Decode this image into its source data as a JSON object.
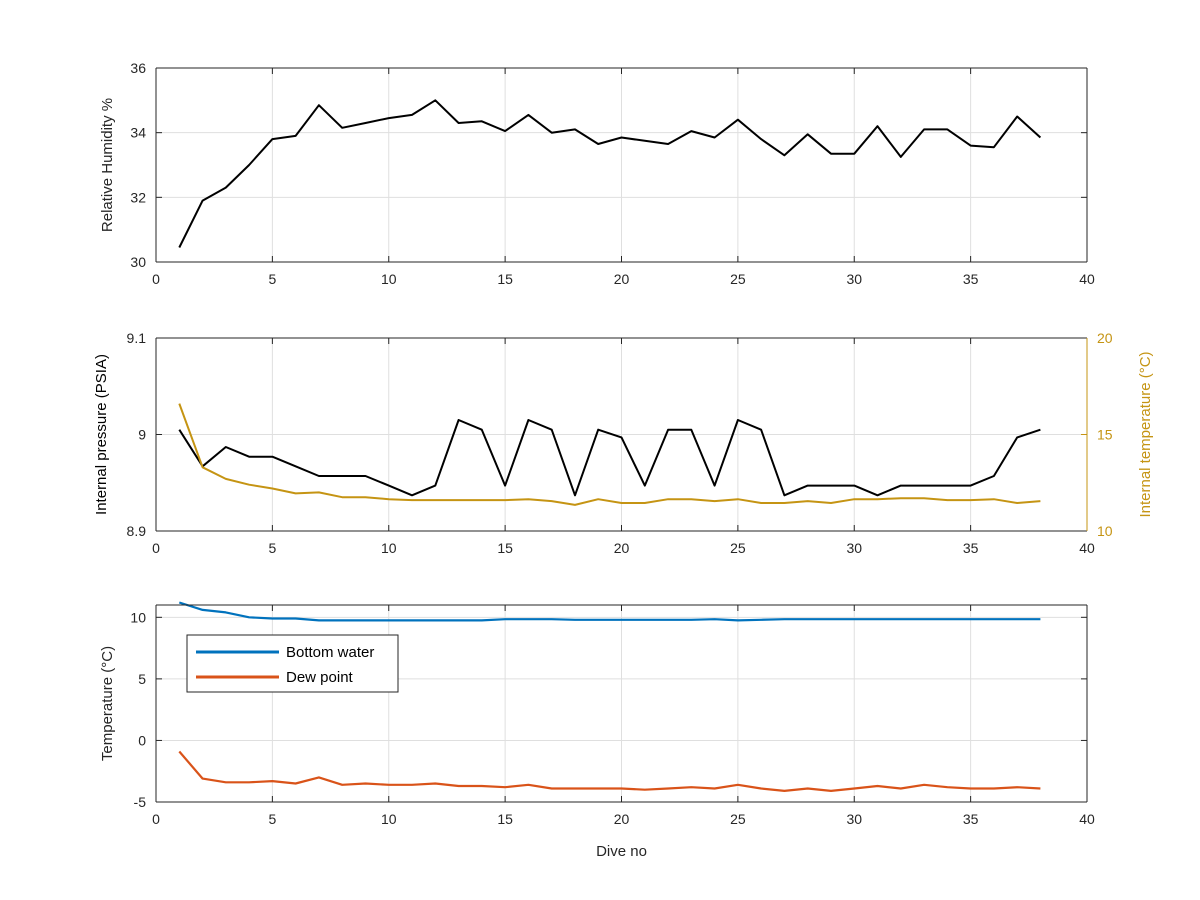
{
  "colors": {
    "axis": "#262626",
    "grid": "#dfdfdf",
    "black_series": "#000000",
    "gold": "#c59413",
    "blue": "#0072bd",
    "orange": "#d95319"
  },
  "chart_data": [
    {
      "type": "line",
      "xlabel": "",
      "ylabel": "Relative Humidity %",
      "xlim": [
        0,
        40
      ],
      "ylim": [
        30,
        36
      ],
      "x_ticks": [
        "0",
        "5",
        "10",
        "15",
        "20",
        "25",
        "30",
        "35",
        "40"
      ],
      "y_ticks": [
        "30",
        "32",
        "34",
        "36"
      ],
      "grid": true,
      "x": [
        1,
        2,
        3,
        4,
        5,
        6,
        7,
        8,
        9,
        10,
        11,
        12,
        13,
        14,
        15,
        16,
        17,
        18,
        19,
        20,
        21,
        22,
        23,
        24,
        25,
        26,
        27,
        28,
        29,
        30,
        31,
        32,
        33,
        34,
        35,
        36,
        37,
        38
      ],
      "series": [
        {
          "color": "#000000",
          "values": [
            30.45,
            31.9,
            32.3,
            33.0,
            33.8,
            33.9,
            34.85,
            34.15,
            34.3,
            34.45,
            34.55,
            35.0,
            34.3,
            34.35,
            34.05,
            34.55,
            34.0,
            34.1,
            33.65,
            33.85,
            33.75,
            33.65,
            34.05,
            33.85,
            34.4,
            33.8,
            33.3,
            33.95,
            33.35,
            33.35,
            34.2,
            33.25,
            34.1,
            34.1,
            33.6,
            33.55,
            34.5,
            33.85
          ]
        }
      ]
    },
    {
      "type": "line",
      "xlabel": "",
      "ylabel": "Internal pressure (PSIA)",
      "y2label": "Internal temperature (°C)",
      "xlim": [
        0,
        40
      ],
      "ylim": [
        8.9,
        9.1
      ],
      "y2lim": [
        10,
        20
      ],
      "x_ticks": [
        "0",
        "5",
        "10",
        "15",
        "20",
        "25",
        "30",
        "35",
        "40"
      ],
      "y_ticks": [
        "8.9",
        "9",
        "9.1"
      ],
      "y2_ticks": [
        "10",
        "15",
        "20"
      ],
      "grid": true,
      "x": [
        1,
        2,
        3,
        4,
        5,
        6,
        7,
        8,
        9,
        10,
        11,
        12,
        13,
        14,
        15,
        16,
        17,
        18,
        19,
        20,
        21,
        22,
        23,
        24,
        25,
        26,
        27,
        28,
        29,
        30,
        31,
        32,
        33,
        34,
        35,
        36,
        37,
        38
      ],
      "series": [
        {
          "axis": "left",
          "color": "#000000",
          "values": [
            9.005,
            8.967,
            8.987,
            8.977,
            8.977,
            8.967,
            8.957,
            8.957,
            8.957,
            8.947,
            8.937,
            8.947,
            9.015,
            9.005,
            8.947,
            9.015,
            9.005,
            8.937,
            9.005,
            8.997,
            8.947,
            9.005,
            9.005,
            8.947,
            9.015,
            9.005,
            8.937,
            8.947,
            8.947,
            8.947,
            8.937,
            8.947,
            8.947,
            8.947,
            8.947,
            8.957,
            8.997,
            9.005
          ]
        },
        {
          "axis": "right",
          "color": "#c59413",
          "values": [
            16.6,
            13.3,
            12.7,
            12.4,
            12.2,
            11.95,
            12.0,
            11.75,
            11.75,
            11.65,
            11.6,
            11.6,
            11.6,
            11.6,
            11.6,
            11.65,
            11.55,
            11.35,
            11.65,
            11.45,
            11.45,
            11.65,
            11.65,
            11.55,
            11.65,
            11.45,
            11.45,
            11.55,
            11.45,
            11.65,
            11.65,
            11.7,
            11.7,
            11.6,
            11.6,
            11.65,
            11.45,
            11.55
          ]
        }
      ]
    },
    {
      "type": "line",
      "xlabel": "Dive no",
      "ylabel": "Temperature (°C)",
      "xlim": [
        0,
        40
      ],
      "ylim": [
        -5,
        11
      ],
      "x_ticks": [
        "0",
        "5",
        "10",
        "15",
        "20",
        "25",
        "30",
        "35",
        "40"
      ],
      "y_ticks": [
        "-5",
        "0",
        "5",
        "10"
      ],
      "grid": true,
      "legend_position": "top-left",
      "x": [
        1,
        2,
        3,
        4,
        5,
        6,
        7,
        8,
        9,
        10,
        11,
        12,
        13,
        14,
        15,
        16,
        17,
        18,
        19,
        20,
        21,
        22,
        23,
        24,
        25,
        26,
        27,
        28,
        29,
        30,
        31,
        32,
        33,
        34,
        35,
        36,
        37,
        38
      ],
      "series": [
        {
          "name": "Bottom water",
          "color": "#0072bd",
          "values": [
            11.2,
            10.6,
            10.4,
            10.0,
            9.9,
            9.9,
            9.75,
            9.75,
            9.75,
            9.75,
            9.75,
            9.75,
            9.75,
            9.75,
            9.85,
            9.85,
            9.85,
            9.8,
            9.8,
            9.8,
            9.8,
            9.8,
            9.8,
            9.85,
            9.75,
            9.8,
            9.85,
            9.85,
            9.85,
            9.85,
            9.85,
            9.85,
            9.85,
            9.85,
            9.85,
            9.85,
            9.85,
            9.85
          ]
        },
        {
          "name": "Dew point",
          "color": "#d95319",
          "values": [
            -0.9,
            -3.1,
            -3.4,
            -3.4,
            -3.3,
            -3.5,
            -3.0,
            -3.6,
            -3.5,
            -3.6,
            -3.6,
            -3.5,
            -3.7,
            -3.7,
            -3.8,
            -3.6,
            -3.9,
            -3.9,
            -3.9,
            -3.9,
            -4.0,
            -3.9,
            -3.8,
            -3.9,
            -3.6,
            -3.9,
            -4.1,
            -3.9,
            -4.1,
            -3.9,
            -3.7,
            -3.9,
            -3.6,
            -3.8,
            -3.9,
            -3.9,
            -3.8,
            -3.9
          ]
        }
      ]
    }
  ]
}
